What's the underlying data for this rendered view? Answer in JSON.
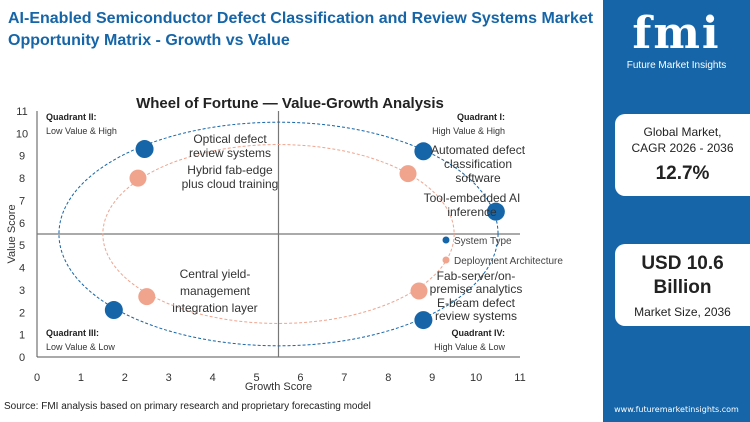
{
  "title": "AI-Enabled Semiconductor Defect Classification and Review Systems Market  Opportunity Matrix - Growth vs Value",
  "source": "Source: FMI analysis based on primary research and proprietary forecasting model",
  "sidebar": {
    "logo_text": "fmi",
    "logo_sub": "Future Market Insights",
    "cagr_label1": "Global Market,",
    "cagr_label2": "CAGR 2026 - 2036",
    "cagr_value": "12.7%",
    "size_value1": "USD 10.6",
    "size_value2": "Billion",
    "size_label": "Market Size, 2036",
    "url": "www.futuremarketinsights.com"
  },
  "chart_data": {
    "type": "scatter",
    "title": "Wheel of Fortune — Value-Growth  Analysis",
    "xlabel": "Growth Score",
    "ylabel": "Value Score",
    "xlim": [
      0,
      11
    ],
    "ylim": [
      0,
      11
    ],
    "xticks": [
      "0",
      "1",
      "2",
      "3",
      "4",
      "5",
      "6",
      "7",
      "8",
      "9",
      "10",
      "11"
    ],
    "yticks": [
      "0",
      "1",
      "2",
      "3",
      "4",
      "5",
      "6",
      "7",
      "8",
      "9",
      "10",
      "11"
    ],
    "quadrant_lines": {
      "x": 5.5,
      "y": 5.5
    },
    "quadrants": [
      {
        "title": "Quadrant II:",
        "sub": "Low Value & High",
        "pos": "top-left"
      },
      {
        "title": "Quadrant I:",
        "sub": "High Value & High",
        "pos": "top-right"
      },
      {
        "title": "Quadrant III:",
        "sub": "Low Value & Low",
        "pos": "bottom-left"
      },
      {
        "title": "Quadrant IV:",
        "sub": "High Value & Low",
        "pos": "bottom-right"
      }
    ],
    "legend_position": "right",
    "series": [
      {
        "name": "System Type",
        "color": "#1565a8",
        "ellipse": {
          "cx": 5.5,
          "cy": 5.5,
          "rx": 5,
          "ry": 5
        },
        "points": [
          {
            "x": 2.45,
            "y": 9.3,
            "label": [
              "Optical defect",
              "review systems"
            ]
          },
          {
            "x": 8.8,
            "y": 9.2,
            "label": [
              "Automated defect",
              "classification",
              "software"
            ]
          },
          {
            "x": 10.45,
            "y": 6.5,
            "label": []
          },
          {
            "x": 1.75,
            "y": 2.1,
            "label": []
          },
          {
            "x": 8.8,
            "y": 1.65,
            "label": [
              "E-beam defect",
              "review systems"
            ]
          }
        ]
      },
      {
        "name": "Deployment Architecture",
        "color": "#f0a48e",
        "ellipse": {
          "cx": 5.5,
          "cy": 5.5,
          "rx": 4,
          "ry": 4
        },
        "points": [
          {
            "x": 2.3,
            "y": 8.0,
            "label": [
              "Hybrid fab-edge",
              "plus cloud training"
            ]
          },
          {
            "x": 8.45,
            "y": 8.2,
            "label": [
              "Tool-embedded AI",
              "inference"
            ]
          },
          {
            "x": 2.5,
            "y": 2.7,
            "label": [
              "Central yield-",
              "management",
              "integration layer"
            ]
          },
          {
            "x": 8.7,
            "y": 2.95,
            "label": [
              "Fab-server/on-",
              "premise analytics"
            ]
          }
        ]
      }
    ]
  }
}
